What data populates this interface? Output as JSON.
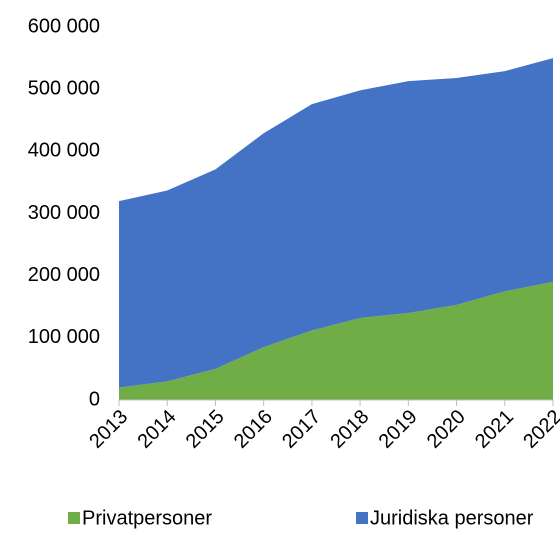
{
  "chart_data": {
    "type": "stacked_area",
    "categories": [
      "2013",
      "2014",
      "2015",
      "2016",
      "2017",
      "2018",
      "2019",
      "2020",
      "2021",
      "2022"
    ],
    "series": [
      {
        "name": "Privatpersoner",
        "color": "#70ad47",
        "values": [
          20000,
          30000,
          50000,
          85000,
          112000,
          132000,
          140000,
          153000,
          175000,
          190000
        ]
      },
      {
        "name": "Juridiska personer",
        "color": "#4472c4",
        "values": [
          300000,
          307000,
          321000,
          344000,
          364000,
          366000,
          373000,
          365000,
          354000,
          360000
        ]
      }
    ],
    "ylim": [
      0,
      600000
    ],
    "yticks": [
      {
        "value": 0,
        "label": "0"
      },
      {
        "value": 100000,
        "label": "100 000"
      },
      {
        "value": 200000,
        "label": "200 000"
      },
      {
        "value": 300000,
        "label": "300 000"
      },
      {
        "value": 400000,
        "label": "400 000"
      },
      {
        "value": 500000,
        "label": "500 000"
      },
      {
        "value": 600000,
        "label": "600 000"
      }
    ],
    "grid": false,
    "legend": "bottom"
  }
}
